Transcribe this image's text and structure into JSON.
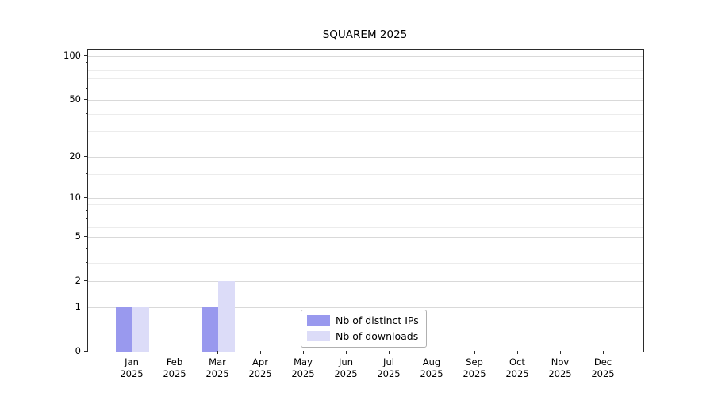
{
  "chart_data": {
    "type": "bar",
    "title": "SQUAREM 2025",
    "categories": [
      "Jan 2025",
      "Feb 2025",
      "Mar 2025",
      "Apr 2025",
      "May 2025",
      "Jun 2025",
      "Jul 2025",
      "Aug 2025",
      "Sep 2025",
      "Oct 2025",
      "Nov 2025",
      "Dec 2025"
    ],
    "series": [
      {
        "name": "Nb of distinct IPs",
        "color": "#9999ee",
        "values": [
          1,
          0,
          1,
          0,
          0,
          0,
          0,
          0,
          0,
          0,
          0,
          0
        ]
      },
      {
        "name": "Nb of downloads",
        "color": "#dcdcf8",
        "values": [
          1,
          0,
          2,
          0,
          0,
          0,
          0,
          0,
          0,
          0,
          0,
          0
        ]
      }
    ],
    "yscale": "log1p",
    "ylim": [
      0,
      110
    ],
    "y_major_ticks": [
      0,
      1,
      2,
      5,
      10,
      20,
      50,
      100
    ],
    "y_minor_ticks": [
      3,
      4,
      6,
      7,
      8,
      9,
      15,
      30,
      40,
      60,
      70,
      80,
      90
    ],
    "grid": true,
    "legend_position": "lower center"
  }
}
